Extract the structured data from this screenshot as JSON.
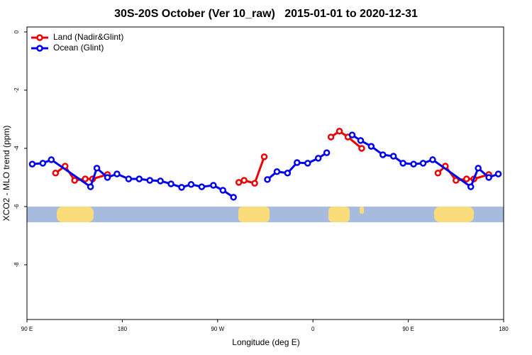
{
  "chart_data": {
    "type": "line",
    "title": "30S-20S October (Ver 10_raw)   2015-01-01 to 2020-12-31",
    "xlabel": "Longitude (deg E)",
    "ylabel": "XCO2 - MLO trend (ppm)",
    "xlim": [
      90,
      540
    ],
    "ylim": [
      -9.88,
      0.17
    ],
    "xticks": [
      {
        "value": 90,
        "label": "90 E"
      },
      {
        "value": 180,
        "label": "180"
      },
      {
        "value": 270,
        "label": "90 W"
      },
      {
        "value": 360,
        "label": "0"
      },
      {
        "value": 450,
        "label": "90 E"
      },
      {
        "value": 540,
        "label": "180"
      }
    ],
    "yticks": [
      0,
      -2,
      -4,
      -6,
      -8
    ],
    "legend": "top-left",
    "series": [
      {
        "name": "Land (Nadir&Glint)",
        "color": "#ee0000",
        "x": [
          117,
          126,
          135,
          145,
          152,
          166,
          null,
          290,
          295,
          305,
          314,
          null,
          377,
          385,
          393,
          406,
          null,
          478,
          485,
          495,
          505,
          512,
          526
        ],
        "values": [
          -4.85,
          -4.61,
          -5.1,
          -5.05,
          -5.05,
          -4.9,
          null,
          -5.17,
          -5.1,
          -5.2,
          -4.29,
          null,
          -3.61,
          -3.41,
          -3.61,
          -4.0,
          null,
          -4.85,
          -4.61,
          -5.1,
          -5.05,
          -5.05,
          -4.9
        ]
      },
      {
        "name": "Ocean (Glint)",
        "color": "#0000ee",
        "x": [
          95,
          105,
          113,
          150,
          156,
          166,
          175,
          186,
          196,
          206,
          216,
          226,
          236,
          245,
          255,
          266,
          275,
          285,
          null,
          317,
          326,
          336,
          345,
          355,
          365,
          373,
          null,
          397,
          405,
          415,
          426,
          436,
          445,
          455,
          464,
          473,
          509,
          516,
          526,
          535
        ],
        "values": [
          -4.54,
          -4.51,
          -4.39,
          -5.32,
          -4.68,
          -5.0,
          -4.88,
          -5.05,
          -5.05,
          -5.1,
          -5.12,
          -5.22,
          -5.34,
          -5.24,
          -5.32,
          -5.27,
          -5.44,
          -5.68,
          null,
          -5.07,
          -4.8,
          -4.85,
          -4.49,
          -4.51,
          -4.34,
          -4.15,
          null,
          -3.54,
          -3.73,
          -3.93,
          -4.22,
          -4.27,
          -4.51,
          -4.54,
          -4.51,
          -4.39,
          -5.32,
          -4.68,
          -5.0,
          -4.88
        ]
      }
    ]
  }
}
